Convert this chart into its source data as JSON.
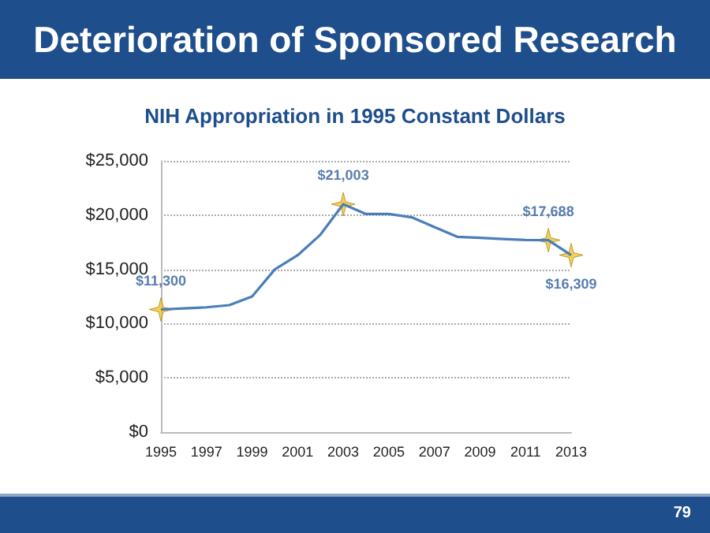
{
  "chart_data": {
    "type": "line",
    "title": "Deterioration of Sponsored Research",
    "subtitle": "NIH Appropriation in 1995 Constant Dollars",
    "categories": [
      "1995",
      null,
      "1997",
      null,
      "1999",
      null,
      "2001",
      null,
      "2003",
      null,
      "2005",
      null,
      "2007",
      null,
      "2009",
      null,
      "2011",
      null,
      "2013"
    ],
    "series": [
      {
        "color": "#4a7ebb",
        "marker": "none",
        "line_style": "solid",
        "values": [
          11300,
          11400,
          11500,
          11700,
          12500,
          15000,
          16300,
          18200,
          21003,
          20100,
          20100,
          19800,
          18900,
          18000,
          17900,
          17800,
          17700,
          17688,
          16309
        ]
      },
      {
        "type": "scatter",
        "color": "#f2c330",
        "marker": "star",
        "values": [
          11300,
          null,
          null,
          null,
          null,
          null,
          null,
          null,
          21003,
          null,
          null,
          null,
          null,
          null,
          null,
          null,
          null,
          17688,
          16309
        ],
        "value_labels": [
          "$11,300",
          null,
          null,
          null,
          null,
          null,
          null,
          null,
          "$21,003",
          null,
          null,
          null,
          null,
          null,
          null,
          null,
          null,
          "$17,688",
          "$16,309"
        ]
      }
    ],
    "ylim": [
      0,
      25000
    ],
    "yticks": [
      {
        "value": 0,
        "label": "$0"
      },
      {
        "value": 5000,
        "label": "$5,000"
      },
      {
        "value": 10000,
        "label": "$10,000"
      },
      {
        "value": 15000,
        "label": "$15,000"
      },
      {
        "value": 20000,
        "label": "$20,000"
      },
      {
        "value": 25000,
        "label": "$25,000"
      }
    ],
    "grid": "y",
    "annotations": [
      "79"
    ]
  }
}
